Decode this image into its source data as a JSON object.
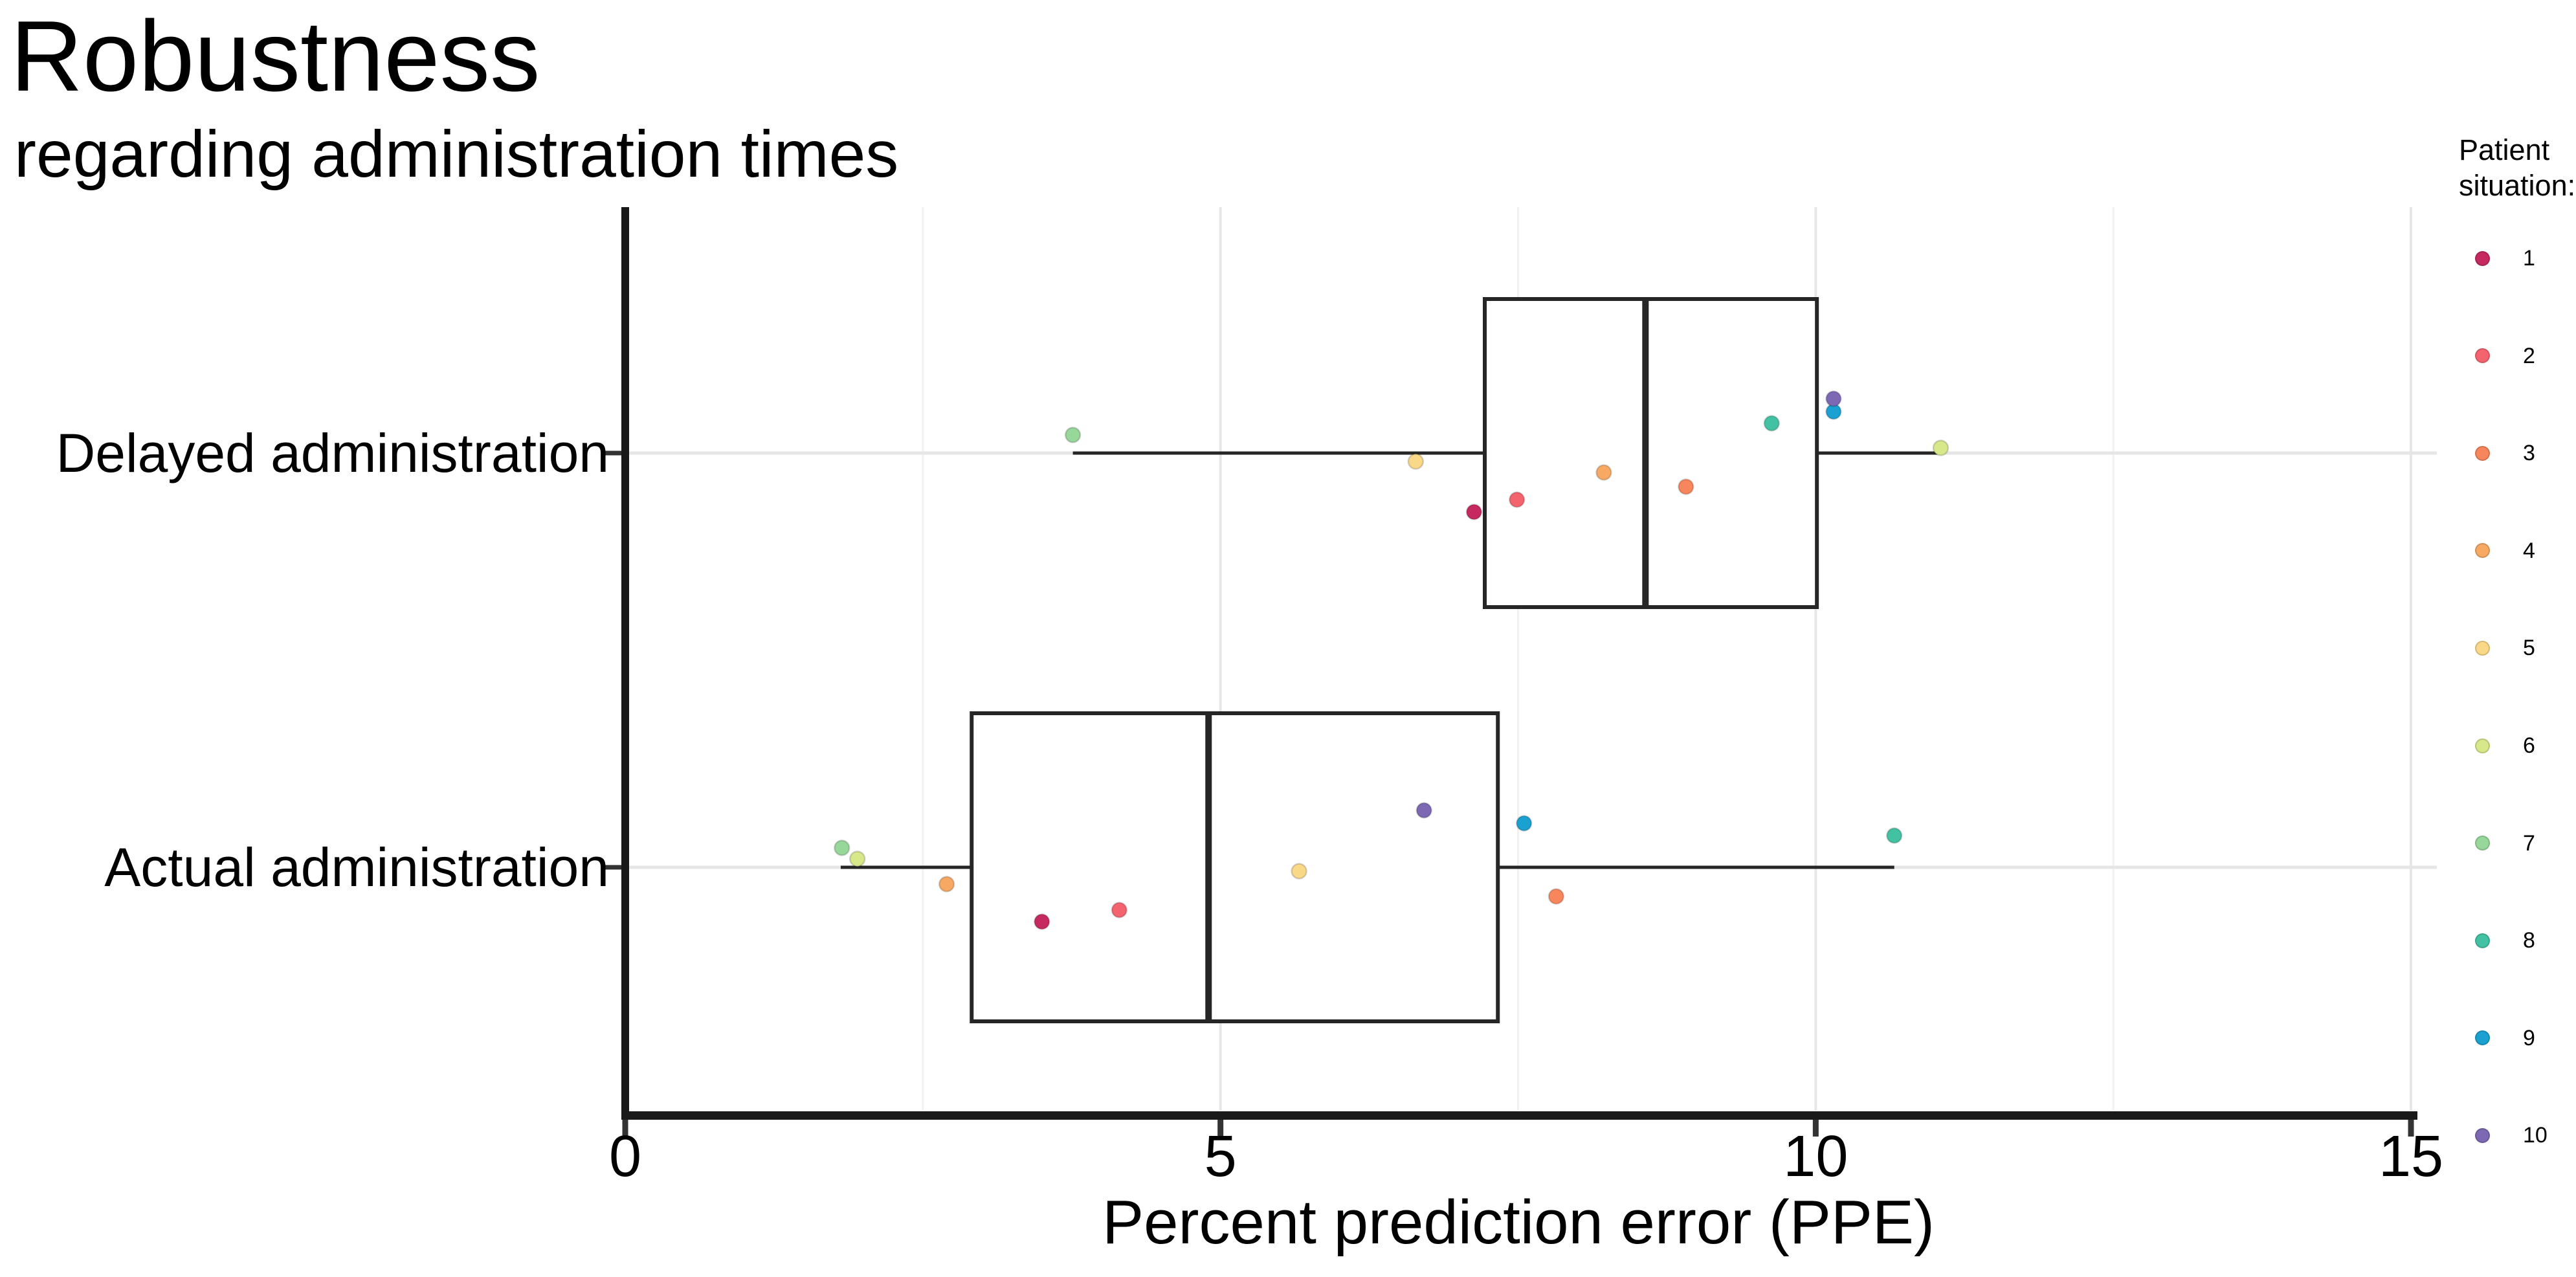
{
  "header": {
    "title": "Robustness",
    "subtitle": "regarding administration times"
  },
  "legend": {
    "title": "Patient situation:",
    "items": [
      {
        "label": "1",
        "color": "#C5295F"
      },
      {
        "label": "2",
        "color": "#F4646F"
      },
      {
        "label": "3",
        "color": "#F8865C"
      },
      {
        "label": "4",
        "color": "#F7A963"
      },
      {
        "label": "5",
        "color": "#F9D888"
      },
      {
        "label": "6",
        "color": "#D6E88A"
      },
      {
        "label": "7",
        "color": "#97D79A"
      },
      {
        "label": "8",
        "color": "#43C2A3"
      },
      {
        "label": "9",
        "color": "#1AA0D1"
      },
      {
        "label": "10",
        "color": "#7C68B3"
      }
    ]
  },
  "chart_data": {
    "type": "boxplot",
    "orientation": "horizontal",
    "title": "Robustness",
    "subtitle": "regarding administration times",
    "xlabel": "Percent prediction error (PPE)",
    "ylabel": "",
    "xlim": [
      0,
      15
    ],
    "x_major_ticks": [
      0,
      5,
      10,
      15
    ],
    "x_minor_gridlines": [
      2.5,
      7.5,
      12.5
    ],
    "grid": true,
    "legend_position": "right",
    "categories": [
      "Delayed administration",
      "Actual administration"
    ],
    "series": [
      {
        "category": "Delayed administration",
        "box": {
          "whisker_min": 3.76,
          "q1": 7.22,
          "median": 8.57,
          "q3": 10.01,
          "whisker_max": 11.05
        },
        "points": [
          {
            "situation": "1",
            "value": 7.13,
            "dy": 91
          },
          {
            "situation": "2",
            "value": 7.49,
            "dy": 72
          },
          {
            "situation": "3",
            "value": 8.91,
            "dy": 52
          },
          {
            "situation": "4",
            "value": 8.22,
            "dy": 30
          },
          {
            "situation": "5",
            "value": 6.64,
            "dy": 13
          },
          {
            "situation": "6",
            "value": 11.05,
            "dy": -8
          },
          {
            "situation": "7",
            "value": 3.76,
            "dy": -28
          },
          {
            "situation": "8",
            "value": 9.63,
            "dy": -46
          },
          {
            "situation": "9",
            "value": 10.15,
            "dy": -64
          },
          {
            "situation": "10",
            "value": 10.15,
            "dy": -84
          }
        ]
      },
      {
        "category": "Actual administration",
        "box": {
          "whisker_min": 1.81,
          "q1": 2.91,
          "median": 4.9,
          "q3": 7.33,
          "whisker_max": 10.66
        },
        "points": [
          {
            "situation": "1",
            "value": 3.5,
            "dy": 84
          },
          {
            "situation": "2",
            "value": 4.15,
            "dy": 66
          },
          {
            "situation": "3",
            "value": 7.82,
            "dy": 45
          },
          {
            "situation": "4",
            "value": 2.7,
            "dy": 26
          },
          {
            "situation": "5",
            "value": 5.66,
            "dy": 6
          },
          {
            "situation": "6",
            "value": 1.95,
            "dy": -13
          },
          {
            "situation": "7",
            "value": 1.82,
            "dy": -30
          },
          {
            "situation": "8",
            "value": 10.66,
            "dy": -49
          },
          {
            "situation": "9",
            "value": 7.55,
            "dy": -68
          },
          {
            "situation": "10",
            "value": 6.71,
            "dy": -88
          }
        ]
      }
    ]
  }
}
